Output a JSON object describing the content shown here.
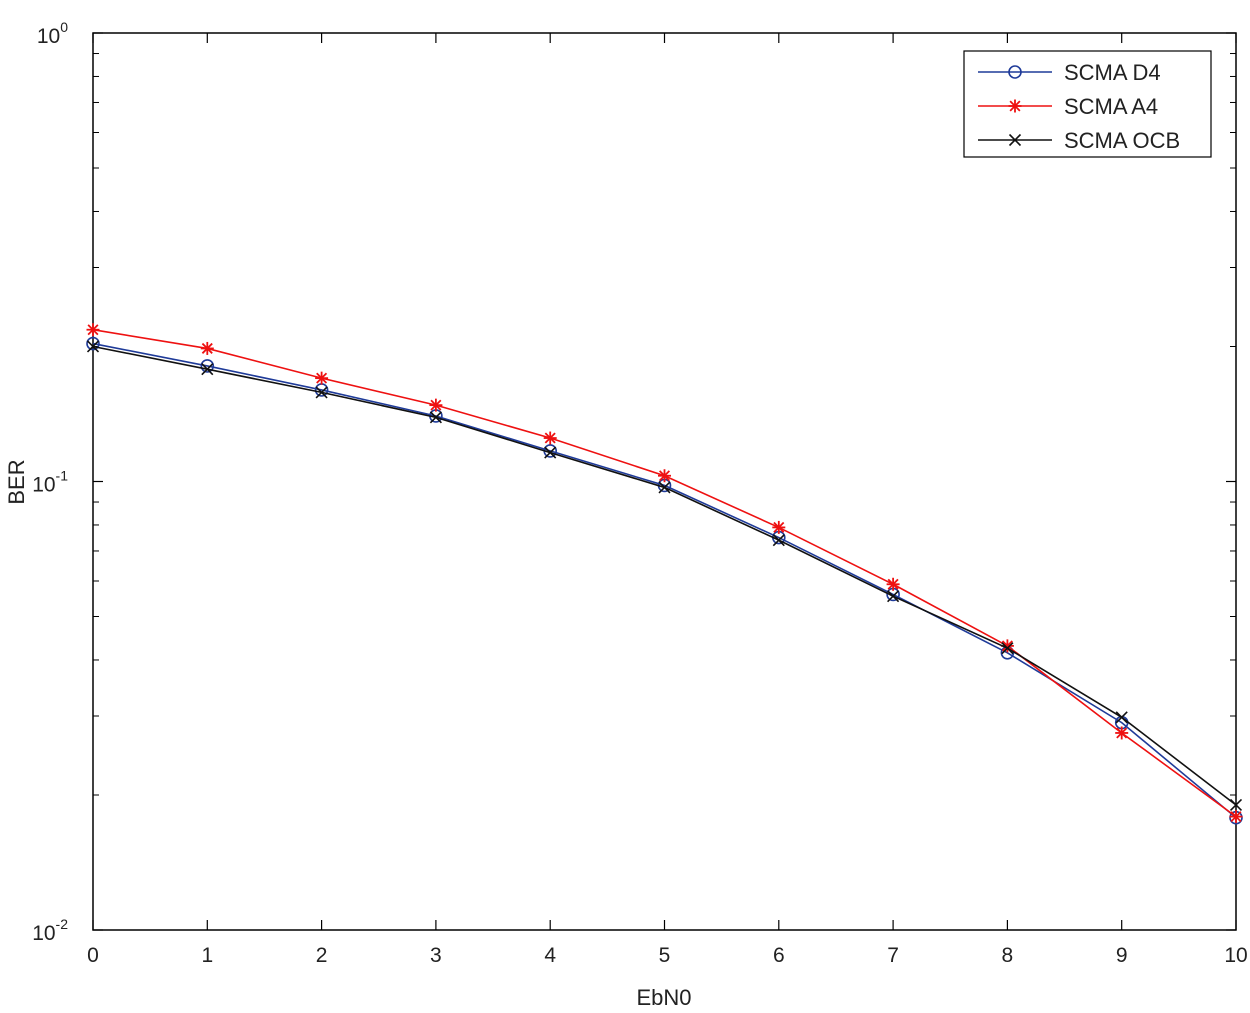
{
  "chart_data": {
    "type": "line",
    "xlabel": "EbN0",
    "ylabel": "BER",
    "xlim": [
      0,
      10
    ],
    "ylim": [
      0.01,
      1
    ],
    "yscale": "log",
    "grid": false,
    "legend_position": "top-right",
    "x": [
      0,
      1,
      2,
      3,
      4,
      5,
      6,
      7,
      8,
      9,
      10
    ],
    "x_tick_labels": [
      "0",
      "1",
      "2",
      "3",
      "4",
      "5",
      "6",
      "7",
      "8",
      "9",
      "10"
    ],
    "y_tick_labels": [
      {
        "base": "10",
        "exp": "0"
      },
      {
        "base": "10",
        "exp": "-1"
      },
      {
        "base": "10",
        "exp": "-2"
      }
    ],
    "series": [
      {
        "name": "SCMA D4",
        "color": "#1f3b99",
        "marker": "circle",
        "values": [
          0.203,
          0.181,
          0.16,
          0.14,
          0.117,
          0.098,
          0.075,
          0.056,
          0.0415,
          0.029,
          0.0178
        ]
      },
      {
        "name": "SCMA A4",
        "color": "#ee1111",
        "marker": "asterisk",
        "values": [
          0.218,
          0.198,
          0.17,
          0.148,
          0.125,
          0.103,
          0.079,
          0.059,
          0.043,
          0.0275,
          0.0179
        ]
      },
      {
        "name": "SCMA OCB",
        "color": "#111111",
        "marker": "x",
        "values": [
          0.2,
          0.178,
          0.158,
          0.139,
          0.116,
          0.097,
          0.074,
          0.0555,
          0.0425,
          0.0298,
          0.019
        ]
      }
    ]
  }
}
